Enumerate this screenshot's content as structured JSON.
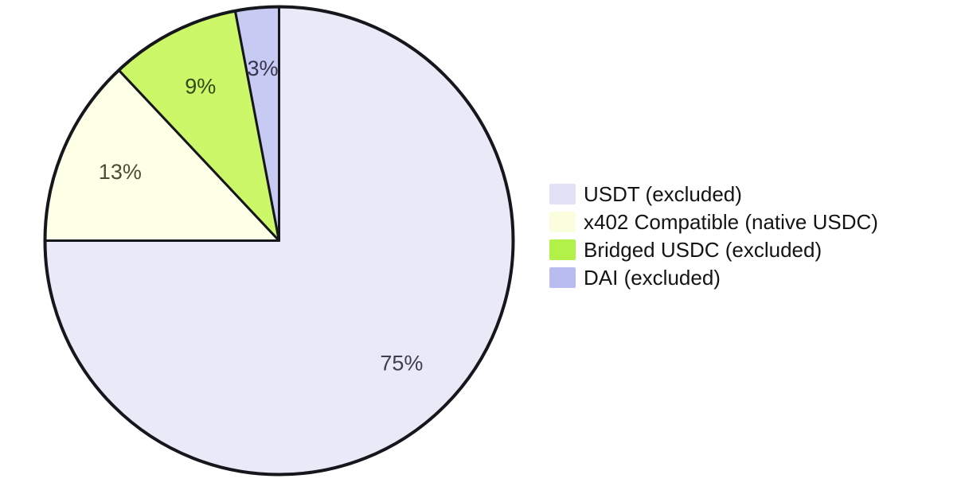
{
  "chart_data": {
    "type": "pie",
    "title": "",
    "legend_position": "right",
    "start_angle_deg": 90,
    "direction": "clockwise",
    "stroke_color": "#16161d",
    "background": "#ffffff",
    "pct_label_distance": 0.74,
    "series": [
      {
        "label": "USDT (excluded)",
        "value": 75,
        "pct_label": "75%",
        "color": "#E9E9F8",
        "legend_color": "#E2E2F6",
        "pct_label_color": "#3C3F52"
      },
      {
        "label": "x402 Compatible (native USDC)",
        "value": 13,
        "pct_label": "13%",
        "color": "#FDFFE7",
        "legend_color": "#FAFEDF",
        "pct_label_color": "#4C4C33"
      },
      {
        "label": "Bridged USDC (excluded)",
        "value": 9,
        "pct_label": "9%",
        "color": "#CBF768",
        "legend_color": "#B2F148",
        "pct_label_color": "#344A1B"
      },
      {
        "label": "DAI (excluded)",
        "value": 3,
        "pct_label": "3%",
        "color": "#C7CAF2",
        "legend_color": "#B8BCF0",
        "pct_label_color": "#35364E"
      }
    ]
  }
}
